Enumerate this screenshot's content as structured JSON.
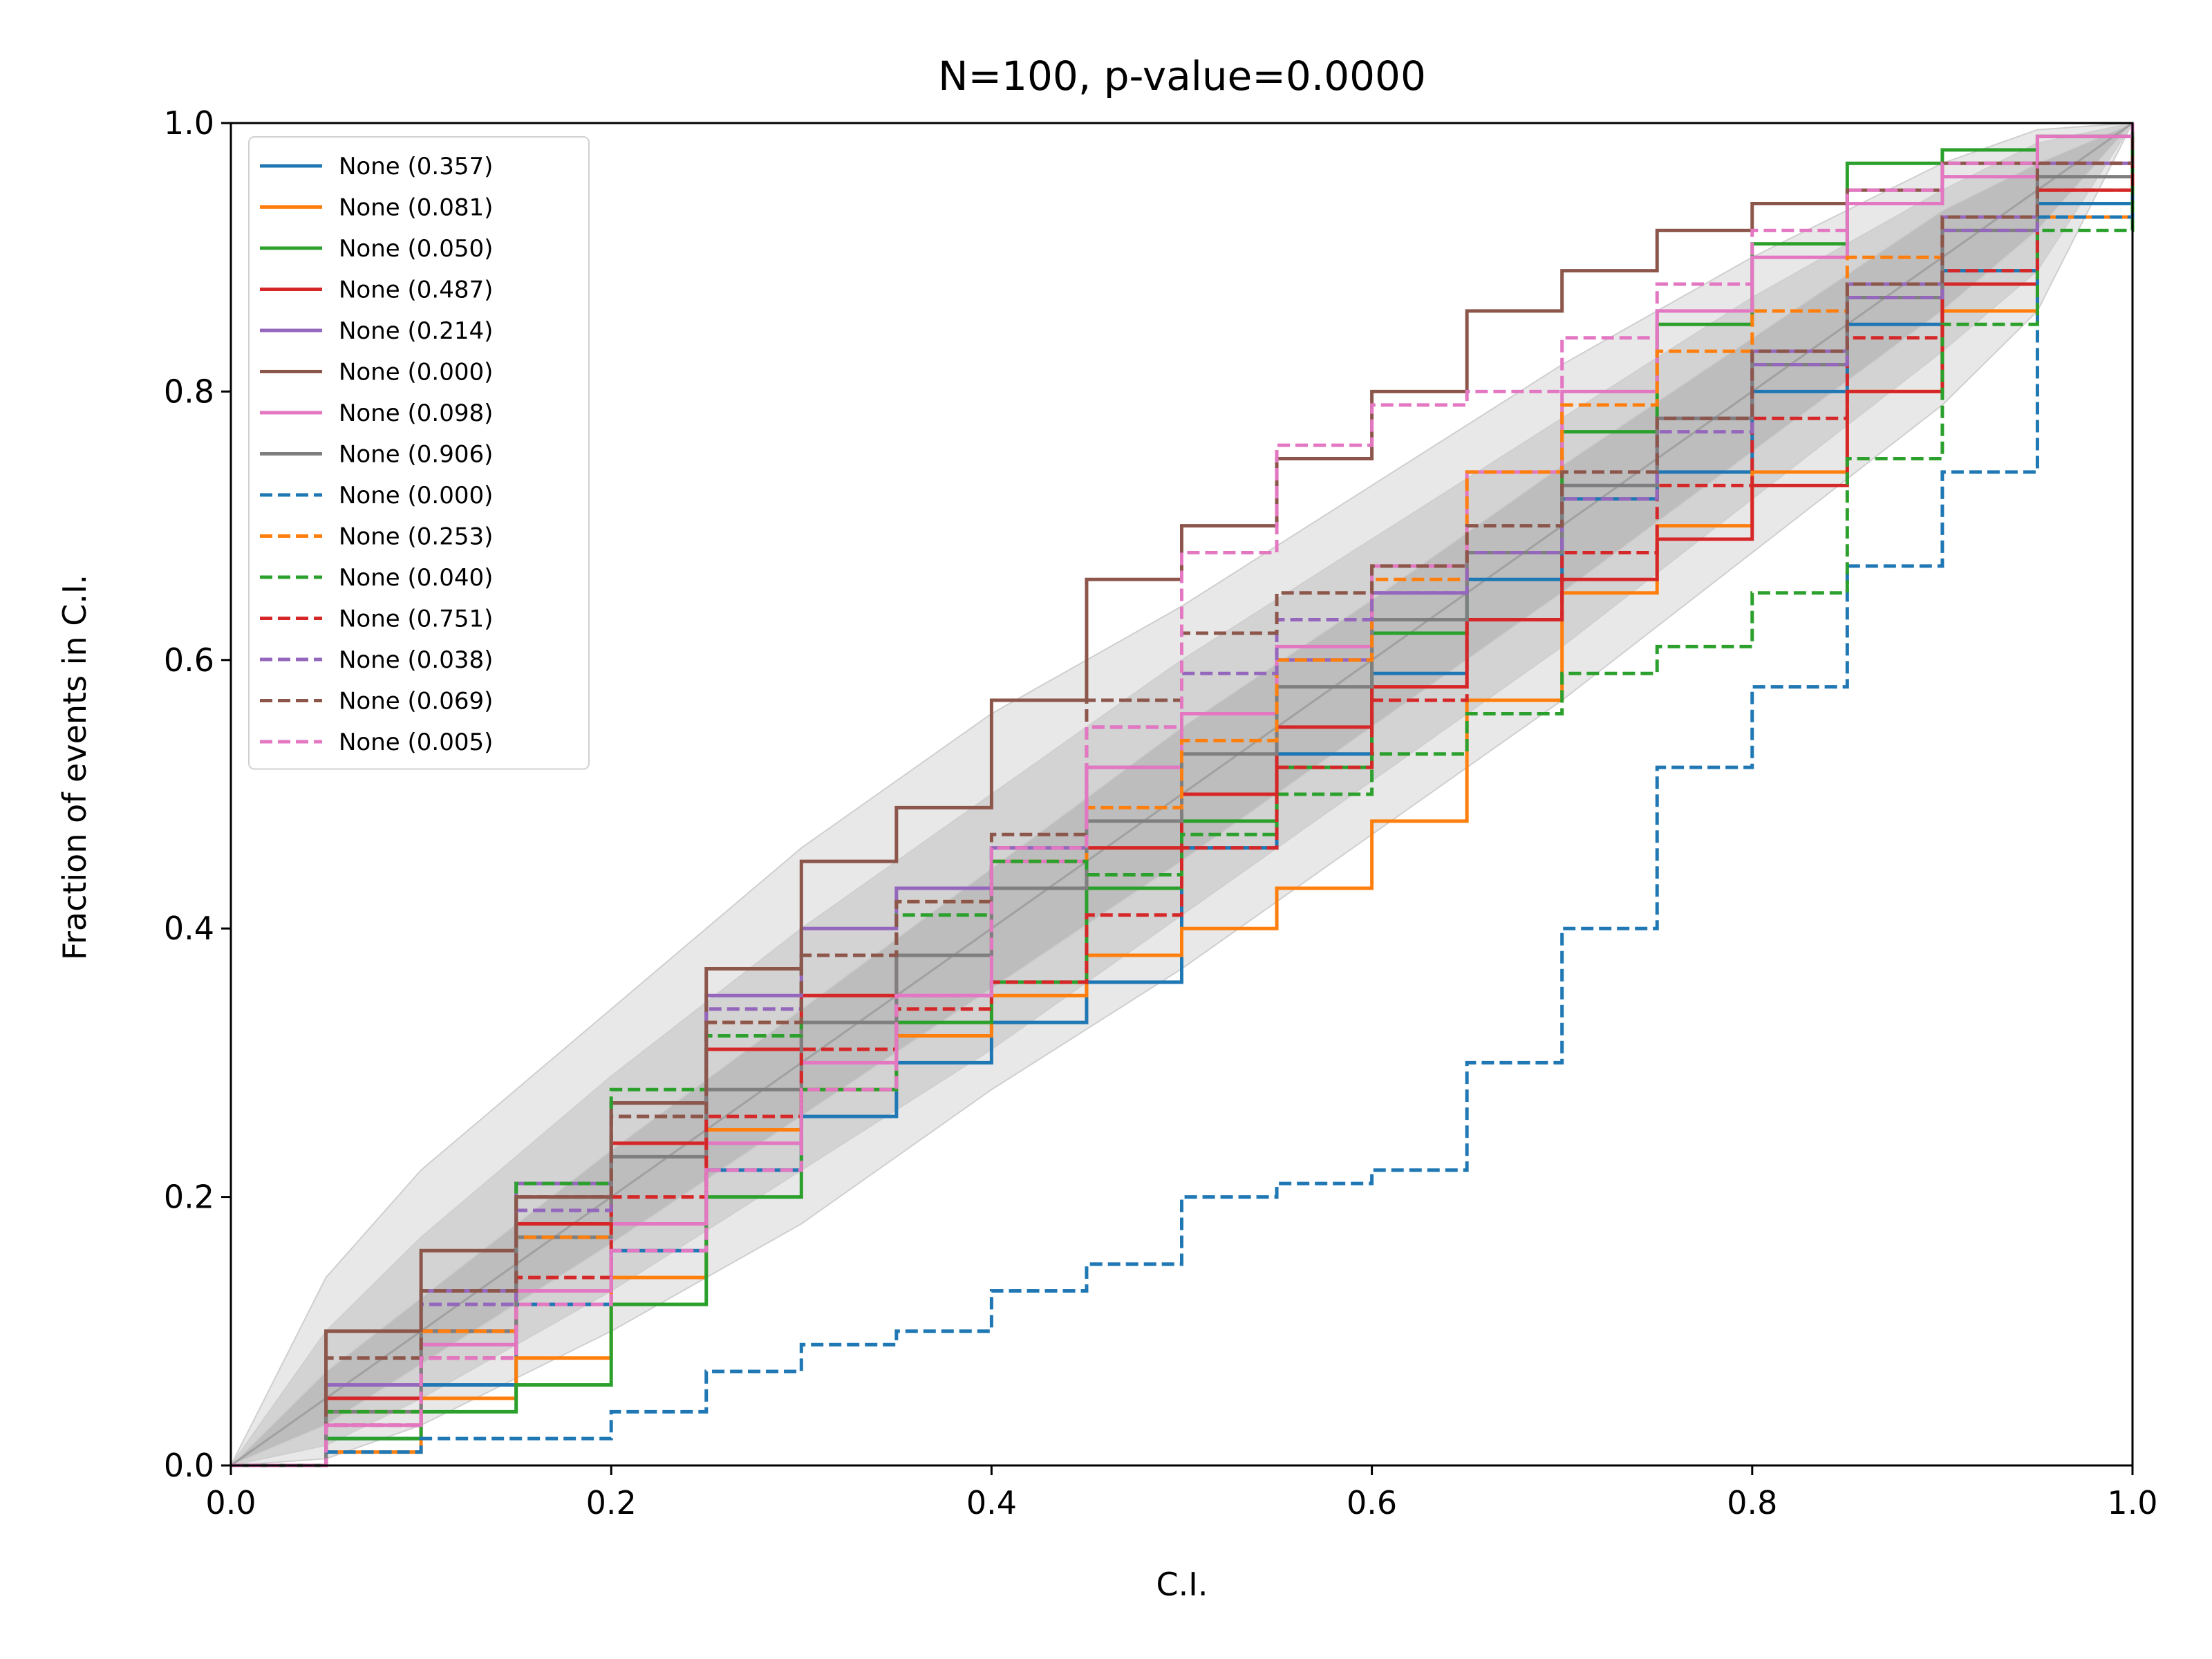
{
  "chart_data": {
    "type": "line",
    "title": "N=100, p-value=0.0000",
    "xlabel": "C.I.",
    "ylabel": "Fraction of events in C.I.",
    "xlim": [
      0,
      1
    ],
    "ylim": [
      0,
      1
    ],
    "xticks": [
      "0.0",
      "0.2",
      "0.4",
      "0.6",
      "0.8",
      "1.0"
    ],
    "yticks": [
      "0.0",
      "0.2",
      "0.4",
      "0.6",
      "0.8",
      "1.0"
    ],
    "grid": false,
    "legend_position": "top-left",
    "bands": [
      {
        "level": "3-sigma",
        "color": "#e8e8e8",
        "x": [
          0,
          0.05,
          0.1,
          0.2,
          0.3,
          0.4,
          0.5,
          0.6,
          0.7,
          0.8,
          0.9,
          0.95,
          1.0
        ],
        "lower": [
          0,
          0.005,
          0.03,
          0.1,
          0.18,
          0.28,
          0.37,
          0.47,
          0.57,
          0.68,
          0.79,
          0.86,
          1.0
        ],
        "upper": [
          0,
          0.14,
          0.22,
          0.34,
          0.46,
          0.56,
          0.64,
          0.73,
          0.82,
          0.9,
          0.97,
          0.995,
          1.0
        ]
      },
      {
        "level": "2-sigma",
        "color": "#d3d3d3",
        "x": [
          0,
          0.05,
          0.1,
          0.2,
          0.3,
          0.4,
          0.5,
          0.6,
          0.7,
          0.8,
          0.9,
          0.95,
          1.0
        ],
        "lower": [
          0,
          0.015,
          0.05,
          0.13,
          0.22,
          0.31,
          0.41,
          0.51,
          0.61,
          0.72,
          0.83,
          0.89,
          1.0
        ],
        "upper": [
          0,
          0.1,
          0.17,
          0.29,
          0.4,
          0.5,
          0.6,
          0.69,
          0.78,
          0.87,
          0.95,
          0.985,
          1.0
        ]
      },
      {
        "level": "1-sigma",
        "color": "#bdbdbd",
        "x": [
          0,
          0.05,
          0.1,
          0.2,
          0.3,
          0.4,
          0.5,
          0.6,
          0.7,
          0.8,
          0.9,
          0.95,
          1.0
        ],
        "lower": [
          0,
          0.03,
          0.075,
          0.165,
          0.26,
          0.355,
          0.45,
          0.55,
          0.65,
          0.755,
          0.86,
          0.92,
          1.0
        ],
        "upper": [
          0,
          0.07,
          0.125,
          0.235,
          0.34,
          0.445,
          0.55,
          0.645,
          0.745,
          0.84,
          0.935,
          0.97,
          1.0
        ]
      }
    ],
    "series": [
      {
        "name": "None (0.357)",
        "color": "#1f77b4",
        "dash": false,
        "x": [
          0,
          0.05,
          0.1,
          0.15,
          0.2,
          0.25,
          0.3,
          0.35,
          0.4,
          0.45,
          0.5,
          0.55,
          0.6,
          0.65,
          0.7,
          0.75,
          0.8,
          0.85,
          0.9,
          0.95,
          1.0
        ],
        "y": [
          0,
          0.02,
          0.06,
          0.12,
          0.16,
          0.22,
          0.26,
          0.3,
          0.33,
          0.36,
          0.46,
          0.53,
          0.59,
          0.66,
          0.72,
          0.74,
          0.8,
          0.85,
          0.89,
          0.94,
          0.99
        ]
      },
      {
        "name": "None (0.081)",
        "color": "#ff7f0e",
        "dash": false,
        "x": [
          0,
          0.05,
          0.1,
          0.15,
          0.2,
          0.25,
          0.3,
          0.35,
          0.4,
          0.45,
          0.5,
          0.55,
          0.6,
          0.65,
          0.7,
          0.75,
          0.8,
          0.85,
          0.9,
          0.95,
          1.0
        ],
        "y": [
          0,
          0.01,
          0.05,
          0.08,
          0.14,
          0.25,
          0.28,
          0.32,
          0.35,
          0.38,
          0.4,
          0.43,
          0.48,
          0.57,
          0.65,
          0.7,
          0.74,
          0.8,
          0.86,
          0.93,
          0.99
        ]
      },
      {
        "name": "None (0.050)",
        "color": "#2ca02c",
        "dash": false,
        "x": [
          0,
          0.05,
          0.1,
          0.15,
          0.2,
          0.25,
          0.3,
          0.35,
          0.4,
          0.45,
          0.5,
          0.55,
          0.6,
          0.65,
          0.7,
          0.75,
          0.8,
          0.85,
          0.9,
          0.95,
          1.0
        ],
        "y": [
          0,
          0.02,
          0.04,
          0.06,
          0.12,
          0.2,
          0.28,
          0.33,
          0.36,
          0.43,
          0.48,
          0.52,
          0.62,
          0.68,
          0.77,
          0.85,
          0.91,
          0.97,
          0.98,
          0.99,
          1.0
        ]
      },
      {
        "name": "None (0.487)",
        "color": "#d62728",
        "dash": false,
        "x": [
          0,
          0.05,
          0.1,
          0.15,
          0.2,
          0.25,
          0.3,
          0.35,
          0.4,
          0.45,
          0.5,
          0.55,
          0.6,
          0.65,
          0.7,
          0.75,
          0.8,
          0.85,
          0.9,
          0.95,
          1.0
        ],
        "y": [
          0,
          0.05,
          0.1,
          0.18,
          0.24,
          0.31,
          0.35,
          0.38,
          0.43,
          0.46,
          0.5,
          0.55,
          0.58,
          0.63,
          0.66,
          0.69,
          0.73,
          0.8,
          0.88,
          0.95,
          1.0
        ]
      },
      {
        "name": "None (0.214)",
        "color": "#9467bd",
        "dash": false,
        "x": [
          0,
          0.05,
          0.1,
          0.15,
          0.2,
          0.25,
          0.3,
          0.35,
          0.4,
          0.45,
          0.5,
          0.55,
          0.6,
          0.65,
          0.7,
          0.75,
          0.8,
          0.85,
          0.9,
          0.95,
          1.0
        ],
        "y": [
          0,
          0.06,
          0.13,
          0.21,
          0.27,
          0.35,
          0.4,
          0.43,
          0.46,
          0.52,
          0.56,
          0.6,
          0.65,
          0.68,
          0.73,
          0.78,
          0.83,
          0.88,
          0.93,
          0.97,
          1.0
        ]
      },
      {
        "name": "None (0.000)",
        "color": "#8c564b",
        "dash": false,
        "x": [
          0,
          0.05,
          0.1,
          0.15,
          0.2,
          0.25,
          0.3,
          0.35,
          0.4,
          0.45,
          0.5,
          0.55,
          0.6,
          0.65,
          0.7,
          0.75,
          0.8,
          0.85,
          0.9,
          0.95,
          1.0
        ],
        "y": [
          0,
          0.1,
          0.16,
          0.2,
          0.27,
          0.37,
          0.45,
          0.49,
          0.57,
          0.66,
          0.7,
          0.75,
          0.8,
          0.86,
          0.89,
          0.92,
          0.94,
          0.95,
          0.97,
          0.99,
          1.0
        ]
      },
      {
        "name": "None (0.098)",
        "color": "#e377c2",
        "dash": false,
        "x": [
          0,
          0.05,
          0.1,
          0.15,
          0.2,
          0.25,
          0.3,
          0.35,
          0.4,
          0.45,
          0.5,
          0.55,
          0.6,
          0.65,
          0.7,
          0.75,
          0.8,
          0.85,
          0.9,
          0.95,
          1.0
        ],
        "y": [
          0,
          0.03,
          0.09,
          0.13,
          0.18,
          0.24,
          0.3,
          0.35,
          0.45,
          0.52,
          0.56,
          0.61,
          0.67,
          0.74,
          0.8,
          0.86,
          0.9,
          0.94,
          0.96,
          0.99,
          1.0
        ]
      },
      {
        "name": "None (0.906)",
        "color": "#7f7f7f",
        "dash": false,
        "x": [
          0,
          0.05,
          0.1,
          0.15,
          0.2,
          0.25,
          0.3,
          0.35,
          0.4,
          0.45,
          0.5,
          0.55,
          0.6,
          0.65,
          0.7,
          0.75,
          0.8,
          0.85,
          0.9,
          0.95,
          1.0
        ],
        "y": [
          0,
          0.04,
          0.1,
          0.17,
          0.23,
          0.28,
          0.33,
          0.38,
          0.43,
          0.48,
          0.53,
          0.58,
          0.63,
          0.68,
          0.73,
          0.78,
          0.82,
          0.87,
          0.92,
          0.96,
          1.0
        ]
      },
      {
        "name": "None (0.000)",
        "color": "#1f77b4",
        "dash": true,
        "x": [
          0,
          0.05,
          0.1,
          0.15,
          0.2,
          0.25,
          0.3,
          0.35,
          0.4,
          0.45,
          0.5,
          0.55,
          0.6,
          0.65,
          0.7,
          0.75,
          0.8,
          0.85,
          0.9,
          0.95,
          1.0
        ],
        "y": [
          0,
          0.01,
          0.02,
          0.02,
          0.04,
          0.07,
          0.09,
          0.1,
          0.13,
          0.15,
          0.2,
          0.21,
          0.22,
          0.3,
          0.4,
          0.52,
          0.58,
          0.67,
          0.74,
          0.93,
          0.98
        ]
      },
      {
        "name": "None (0.253)",
        "color": "#ff7f0e",
        "dash": true,
        "x": [
          0,
          0.05,
          0.1,
          0.15,
          0.2,
          0.25,
          0.3,
          0.35,
          0.4,
          0.45,
          0.5,
          0.55,
          0.6,
          0.65,
          0.7,
          0.75,
          0.8,
          0.85,
          0.9,
          0.95,
          1.0
        ],
        "y": [
          0,
          0.04,
          0.1,
          0.17,
          0.26,
          0.33,
          0.38,
          0.42,
          0.45,
          0.49,
          0.54,
          0.6,
          0.66,
          0.74,
          0.79,
          0.83,
          0.86,
          0.9,
          0.93,
          0.97,
          1.0
        ]
      },
      {
        "name": "None (0.040)",
        "color": "#2ca02c",
        "dash": true,
        "x": [
          0,
          0.05,
          0.1,
          0.15,
          0.2,
          0.25,
          0.3,
          0.35,
          0.4,
          0.45,
          0.5,
          0.55,
          0.6,
          0.65,
          0.7,
          0.75,
          0.8,
          0.85,
          0.9,
          0.95,
          1.0
        ],
        "y": [
          0,
          0.04,
          0.13,
          0.21,
          0.28,
          0.32,
          0.38,
          0.41,
          0.45,
          0.44,
          0.47,
          0.5,
          0.53,
          0.56,
          0.59,
          0.61,
          0.65,
          0.75,
          0.85,
          0.92,
          0.99
        ]
      },
      {
        "name": "None (0.751)",
        "color": "#d62728",
        "dash": true,
        "x": [
          0,
          0.05,
          0.1,
          0.15,
          0.2,
          0.25,
          0.3,
          0.35,
          0.4,
          0.45,
          0.5,
          0.55,
          0.6,
          0.65,
          0.7,
          0.75,
          0.8,
          0.85,
          0.9,
          0.95,
          1.0
        ],
        "y": [
          0,
          0.03,
          0.08,
          0.14,
          0.2,
          0.26,
          0.31,
          0.34,
          0.36,
          0.41,
          0.46,
          0.52,
          0.57,
          0.63,
          0.68,
          0.73,
          0.78,
          0.84,
          0.89,
          0.95,
          1.0
        ]
      },
      {
        "name": "None (0.038)",
        "color": "#9467bd",
        "dash": true,
        "x": [
          0,
          0.05,
          0.1,
          0.15,
          0.2,
          0.25,
          0.3,
          0.35,
          0.4,
          0.45,
          0.5,
          0.55,
          0.6,
          0.65,
          0.7,
          0.75,
          0.8,
          0.85,
          0.9,
          0.95,
          1.0
        ],
        "y": [
          0,
          0.06,
          0.12,
          0.19,
          0.26,
          0.34,
          0.38,
          0.43,
          0.46,
          0.55,
          0.59,
          0.63,
          0.65,
          0.68,
          0.72,
          0.77,
          0.82,
          0.87,
          0.92,
          0.97,
          1.0
        ]
      },
      {
        "name": "None (0.069)",
        "color": "#8c564b",
        "dash": true,
        "x": [
          0,
          0.05,
          0.1,
          0.15,
          0.2,
          0.25,
          0.3,
          0.35,
          0.4,
          0.45,
          0.5,
          0.55,
          0.6,
          0.65,
          0.7,
          0.75,
          0.8,
          0.85,
          0.9,
          0.95,
          1.0
        ],
        "y": [
          0,
          0.08,
          0.13,
          0.2,
          0.26,
          0.33,
          0.38,
          0.42,
          0.47,
          0.57,
          0.62,
          0.65,
          0.67,
          0.7,
          0.74,
          0.78,
          0.83,
          0.88,
          0.93,
          0.97,
          1.0
        ]
      },
      {
        "name": "None (0.005)",
        "color": "#e377c2",
        "dash": true,
        "x": [
          0,
          0.05,
          0.1,
          0.15,
          0.2,
          0.25,
          0.3,
          0.35,
          0.4,
          0.45,
          0.5,
          0.55,
          0.6,
          0.65,
          0.7,
          0.75,
          0.8,
          0.85,
          0.9,
          0.95,
          1.0
        ],
        "y": [
          0,
          0.03,
          0.08,
          0.12,
          0.16,
          0.22,
          0.28,
          0.35,
          0.46,
          0.55,
          0.68,
          0.76,
          0.79,
          0.8,
          0.84,
          0.88,
          0.92,
          0.95,
          0.97,
          0.99,
          1.0
        ]
      }
    ]
  }
}
